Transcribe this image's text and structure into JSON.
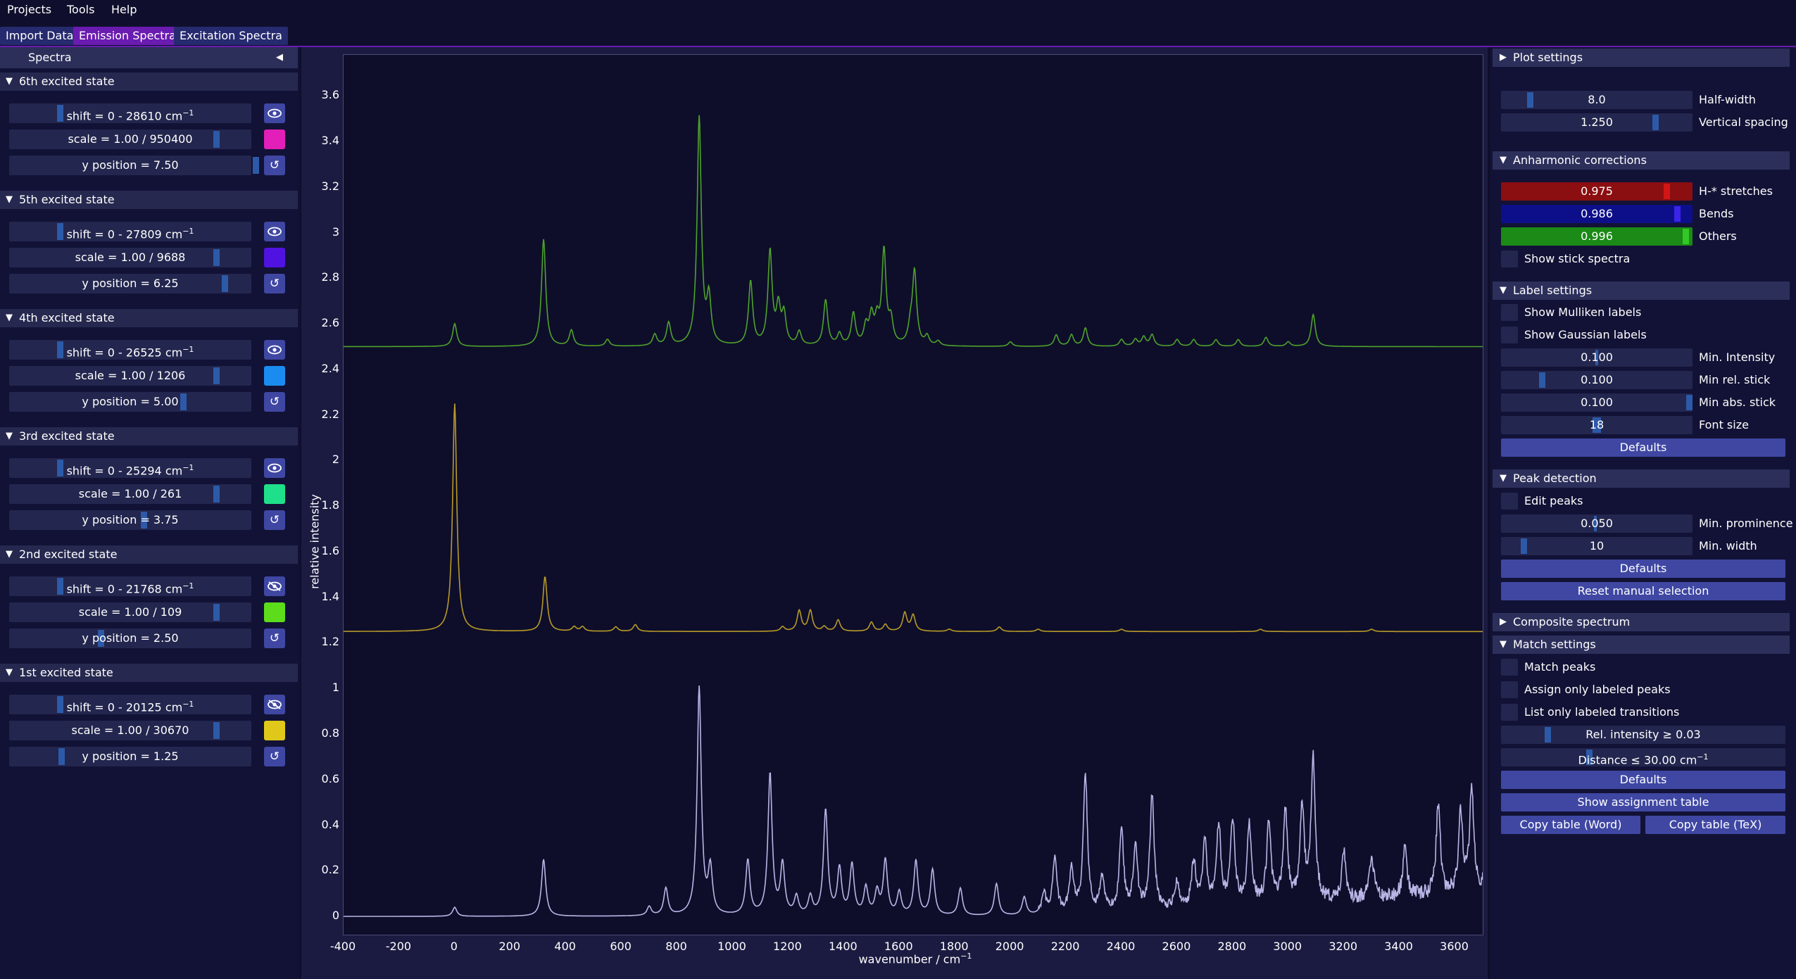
{
  "menu": [
    "Projects",
    "Tools",
    "Help"
  ],
  "tabs": [
    "Import Data",
    "Emission Spectra",
    "Excitation Spectra"
  ],
  "spectra_header": "Spectra",
  "states": [
    {
      "title": "6th excited state",
      "shift": "shift = 0 - 28610 cm",
      "scale": "scale = 1.00 / 950400",
      "ypos": "y position = 7.50",
      "color": "#e21fb8",
      "visible": true
    },
    {
      "title": "5th excited state",
      "shift": "shift = 0 - 27809 cm",
      "scale": "scale = 1.00 / 9688",
      "ypos": "y position = 6.25",
      "color": "#5012e0",
      "visible": true
    },
    {
      "title": "4th excited state",
      "shift": "shift = 0 - 26525 cm",
      "scale": "scale = 1.00 / 1206",
      "ypos": "y position = 5.00",
      "color": "#1a8cf0",
      "visible": true
    },
    {
      "title": "3rd excited state",
      "shift": "shift = 0 - 25294 cm",
      "scale": "scale = 1.00 / 261",
      "ypos": "y position = 3.75",
      "color": "#1fe08a",
      "visible": true
    },
    {
      "title": "2nd excited state",
      "shift": "shift = 0 - 21768 cm",
      "scale": "scale = 1.00 / 109",
      "ypos": "y position = 2.50",
      "color": "#5cdc1a",
      "visible": false
    },
    {
      "title": "1st excited state",
      "shift": "shift = 0 - 20125 cm",
      "scale": "scale = 1.00 / 30670",
      "ypos": "y position = 1.25",
      "color": "#e0c81a",
      "visible": false
    }
  ],
  "plot": {
    "ylabel": "relative intensity",
    "xlabel": "wavenumber / cm",
    "yticks": [
      "3.6",
      "3.4",
      "3.2",
      "3",
      "2.8",
      "2.6",
      "2.4",
      "2.2",
      "2",
      "1.8",
      "1.6",
      "1.4",
      "1.2",
      "1",
      "0.8",
      "0.6",
      "0.4",
      "0.2",
      "0"
    ],
    "xticks": [
      "-400",
      "-200",
      "0",
      "200",
      "400",
      "600",
      "800",
      "1000",
      "1200",
      "1400",
      "1600",
      "1800",
      "2000",
      "2200",
      "2400",
      "2600",
      "2800",
      "3000",
      "3200",
      "3400",
      "3600"
    ]
  },
  "chart_data": {
    "type": "line",
    "xlabel": "wavenumber / cm⁻¹",
    "ylabel": "relative intensity",
    "xlim": [
      -400,
      3700
    ],
    "ylim": [
      -0.08,
      3.78
    ],
    "grid": false,
    "series": [
      {
        "offset": 2.5,
        "color": "#4ea22c",
        "baseline": 2.5,
        "peaks": [
          [
            0,
            0.1
          ],
          [
            320,
            0.47
          ],
          [
            420,
            0.07
          ],
          [
            550,
            0.03
          ],
          [
            720,
            0.05
          ],
          [
            770,
            0.1
          ],
          [
            880,
            1.0
          ],
          [
            915,
            0.2
          ],
          [
            1065,
            0.28
          ],
          [
            1135,
            0.41
          ],
          [
            1165,
            0.16
          ],
          [
            1185,
            0.13
          ],
          [
            1240,
            0.06
          ],
          [
            1335,
            0.2
          ],
          [
            1385,
            0.05
          ],
          [
            1435,
            0.14
          ],
          [
            1480,
            0.08
          ],
          [
            1500,
            0.12
          ],
          [
            1520,
            0.1
          ],
          [
            1545,
            0.41
          ],
          [
            1570,
            0.1
          ],
          [
            1640,
            0.07
          ],
          [
            1655,
            0.32
          ],
          [
            1700,
            0.04
          ],
          [
            1740,
            0.02
          ],
          [
            2000,
            0.02
          ],
          [
            2165,
            0.05
          ],
          [
            2220,
            0.05
          ],
          [
            2270,
            0.08
          ],
          [
            2400,
            0.03
          ],
          [
            2450,
            0.03
          ],
          [
            2480,
            0.04
          ],
          [
            2510,
            0.05
          ],
          [
            2600,
            0.03
          ],
          [
            2660,
            0.03
          ],
          [
            2740,
            0.03
          ],
          [
            2820,
            0.03
          ],
          [
            2920,
            0.04
          ],
          [
            3000,
            0.02
          ],
          [
            3090,
            0.14
          ]
        ]
      },
      {
        "offset": 1.25,
        "color": "#b89a28",
        "baseline": 1.25,
        "peaks": [
          [
            0,
            1.0
          ],
          [
            325,
            0.24
          ],
          [
            430,
            0.02
          ],
          [
            460,
            0.02
          ],
          [
            580,
            0.02
          ],
          [
            650,
            0.03
          ],
          [
            1180,
            0.02
          ],
          [
            1240,
            0.09
          ],
          [
            1280,
            0.09
          ],
          [
            1330,
            0.02
          ],
          [
            1380,
            0.05
          ],
          [
            1500,
            0.04
          ],
          [
            1550,
            0.03
          ],
          [
            1620,
            0.08
          ],
          [
            1650,
            0.07
          ],
          [
            1780,
            0.01
          ],
          [
            1960,
            0.02
          ],
          [
            2100,
            0.01
          ],
          [
            2400,
            0.01
          ],
          [
            2900,
            0.01
          ],
          [
            3300,
            0.01
          ]
        ]
      },
      {
        "offset": 0.0,
        "color": "#b9b6e6",
        "baseline": 0.0,
        "noisy": true,
        "peaks": [
          [
            0,
            0.04
          ],
          [
            320,
            0.25
          ],
          [
            700,
            0.04
          ],
          [
            760,
            0.12
          ],
          [
            880,
            1.0
          ],
          [
            920,
            0.2
          ],
          [
            1055,
            0.24
          ],
          [
            1135,
            0.62
          ],
          [
            1180,
            0.22
          ],
          [
            1230,
            0.08
          ],
          [
            1280,
            0.08
          ],
          [
            1335,
            0.46
          ],
          [
            1385,
            0.2
          ],
          [
            1430,
            0.22
          ],
          [
            1480,
            0.12
          ],
          [
            1520,
            0.1
          ],
          [
            1550,
            0.24
          ],
          [
            1600,
            0.1
          ],
          [
            1660,
            0.24
          ],
          [
            1720,
            0.2
          ],
          [
            1820,
            0.12
          ],
          [
            1950,
            0.14
          ],
          [
            2050,
            0.08
          ],
          [
            2120,
            0.1
          ],
          [
            2160,
            0.25
          ],
          [
            2220,
            0.2
          ],
          [
            2270,
            0.6
          ],
          [
            2330,
            0.15
          ],
          [
            2400,
            0.35
          ],
          [
            2450,
            0.27
          ],
          [
            2510,
            0.5
          ],
          [
            2600,
            0.12
          ],
          [
            2660,
            0.2
          ],
          [
            2700,
            0.28
          ],
          [
            2750,
            0.35
          ],
          [
            2800,
            0.38
          ],
          [
            2860,
            0.35
          ],
          [
            2930,
            0.35
          ],
          [
            2990,
            0.4
          ],
          [
            3050,
            0.4
          ],
          [
            3090,
            0.62
          ],
          [
            3200,
            0.22
          ],
          [
            3300,
            0.2
          ],
          [
            3420,
            0.22
          ],
          [
            3540,
            0.4
          ],
          [
            3620,
            0.35
          ],
          [
            3660,
            0.45
          ],
          [
            3720,
            0.3
          ]
        ]
      }
    ]
  },
  "right": {
    "plot_settings": "Plot settings",
    "halfwidth_value": "8.0",
    "halfwidth_label": "Half-width",
    "vspacing_value": "1.250",
    "vspacing_label": "Vertical spacing",
    "anharmonic": "Anharmonic corrections",
    "h_value": "0.975",
    "h_label": "H-* stretches",
    "bends_value": "0.986",
    "bends_label": "Bends",
    "others_value": "0.996",
    "others_label": "Others",
    "show_stick": "Show stick spectra",
    "label_settings": "Label settings",
    "mulliken": "Show Mulliken labels",
    "gaussian": "Show Gaussian labels",
    "min_intensity_value": "0.100",
    "min_intensity_label": "Min. Intensity",
    "min_rel_value": "0.100",
    "min_rel_label": "Min rel. stick",
    "min_abs_value": "0.100",
    "min_abs_label": "Min abs. stick",
    "font_size_value": "18",
    "font_size_label": "Font size",
    "defaults": "Defaults",
    "peak_detection": "Peak detection",
    "edit_peaks": "Edit peaks",
    "min_prom_value": "0.050",
    "min_prom_label": "Min. prominence",
    "min_width_value": "10",
    "min_width_label": "Min. width",
    "reset_manual": "Reset manual selection",
    "composite": "Composite spectrum",
    "match_settings": "Match settings",
    "match_peaks": "Match peaks",
    "assign_only": "Assign only labeled peaks",
    "list_only": "List only labeled transitions",
    "rel_intensity": "Rel. intensity ≥ 0.03",
    "distance": "Distance ≤ 30.00  cm",
    "show_assignment": "Show assignment table",
    "copy_word": "Copy table (Word)",
    "copy_tex": "Copy table (TeX)"
  }
}
